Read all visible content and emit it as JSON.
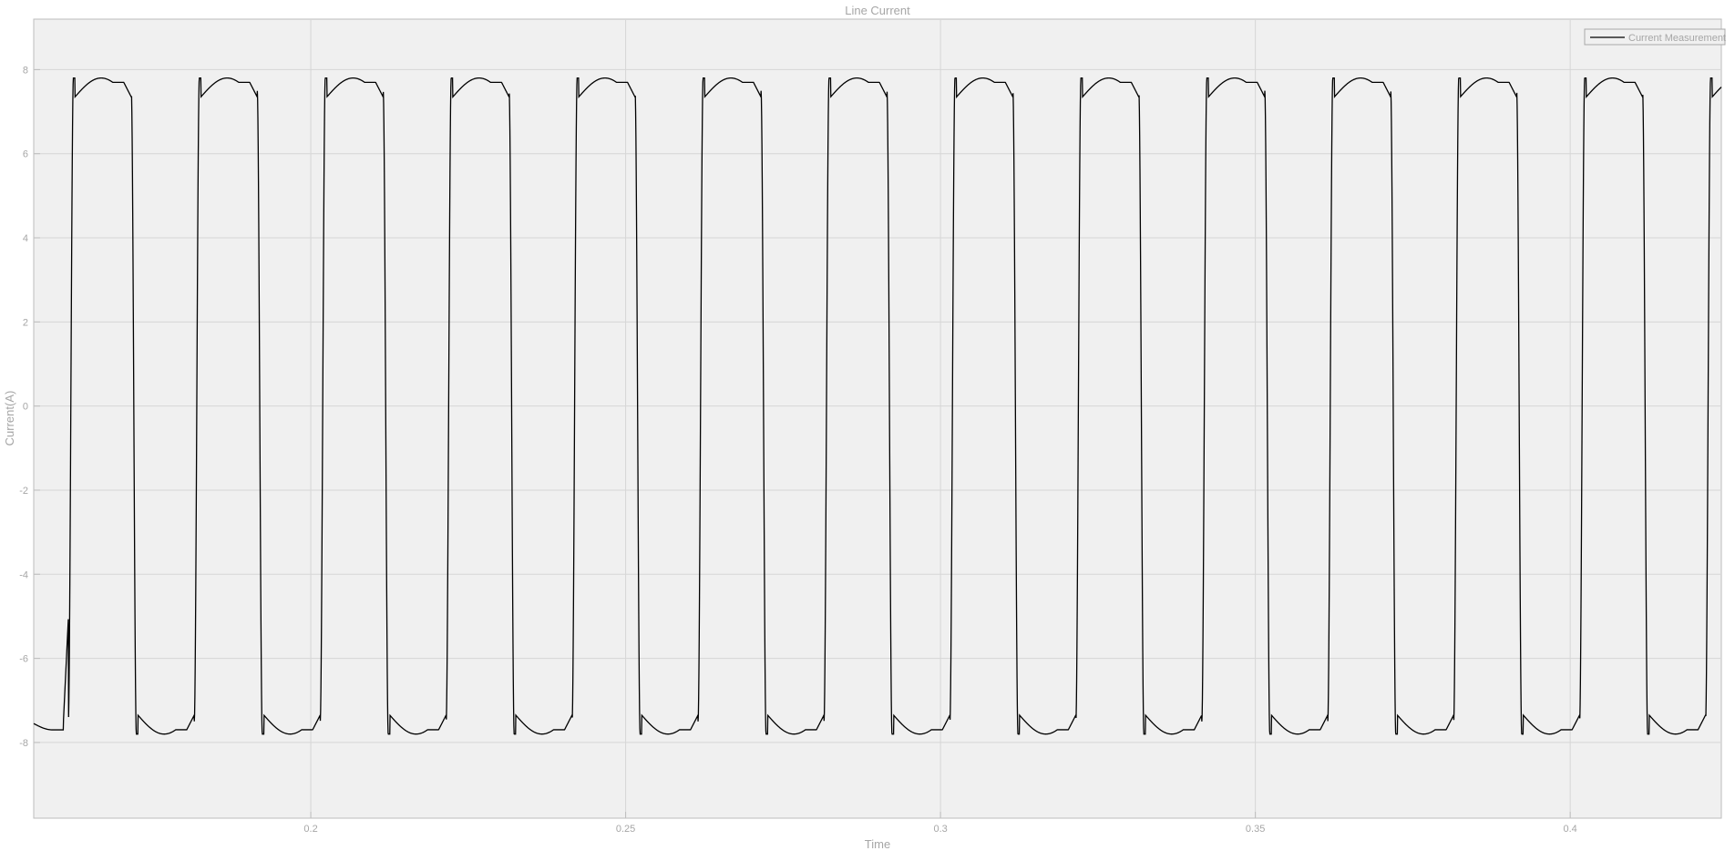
{
  "chart_data": {
    "type": "line",
    "title": "Line Current",
    "xlabel": "Time",
    "ylabel": "Current(A)",
    "xlim": [
      0.156,
      0.424
    ],
    "ylim": [
      -9.8,
      9.2
    ],
    "xticks": [
      0.2,
      0.25,
      0.3,
      0.35,
      0.4
    ],
    "xtick_labels": [
      "0.2",
      "0.25",
      "0.3",
      "0.35",
      "0.4"
    ],
    "yticks": [
      8,
      6,
      4,
      2,
      0,
      -2,
      -4,
      -6,
      -8
    ],
    "ytick_labels": [
      "8",
      "6",
      "4",
      "2",
      "0",
      "-2",
      "-4",
      "-6",
      "-8"
    ],
    "grid": true,
    "legend_position": "top-right",
    "colors": {
      "plot_background": "#f0f0f0",
      "grid": "#d6d6d6",
      "axes": "#bdbdbd",
      "text": "#a6a6a6",
      "series": "#000000"
    },
    "series": [
      {
        "name": "Current Measurement",
        "signal": "square-like wave, 50 Hz",
        "amplitude": 7.8,
        "period": 0.02,
        "rising_edges": [
          0.1615,
          0.1815,
          0.2015,
          0.2215,
          0.2415,
          0.2615,
          0.2815,
          0.3015,
          0.3215,
          0.3415,
          0.3615,
          0.3815,
          0.4015,
          0.4215
        ],
        "falling_edges": [
          0.1715,
          0.1915,
          0.2115,
          0.2315,
          0.2515,
          0.2715,
          0.2915,
          0.3115,
          0.3315,
          0.3515,
          0.3715,
          0.3915,
          0.4115
        ]
      }
    ]
  }
}
